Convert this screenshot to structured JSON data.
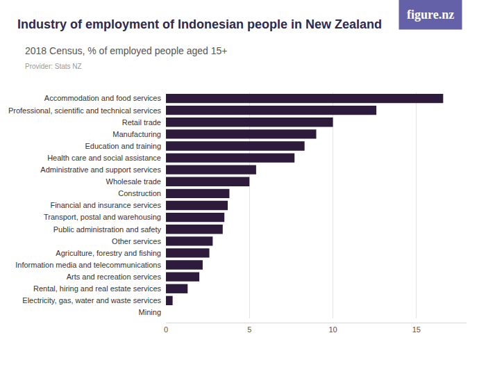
{
  "chart_data": {
    "type": "bar",
    "orientation": "horizontal",
    "title": "Industry of employment of Indonesian people in New Zealand",
    "subtitle": "2018 Census, % of employed people aged 15+",
    "provider": "Provider: Stats NZ",
    "logo": "figure.nz",
    "categories": [
      "Accommodation and food services",
      "Professional, scientific and technical services",
      "Retail trade",
      "Manufacturing",
      "Education and training",
      "Health care and social assistance",
      "Administrative and support services",
      "Wholesale trade",
      "Construction",
      "Financial and insurance services",
      "Transport, postal and warehousing",
      "Public administration and safety",
      "Other services",
      "Agriculture, forestry and fishing",
      "Information media and telecommunications",
      "Arts and recreation services",
      "Rental, hiring and real estate services",
      "Electricity, gas, water and waste services",
      "Mining"
    ],
    "values": [
      16.6,
      12.6,
      10.0,
      9.0,
      8.3,
      7.7,
      5.4,
      5.0,
      3.8,
      3.7,
      3.5,
      3.4,
      2.8,
      2.6,
      2.2,
      2.0,
      1.3,
      0.4,
      0
    ],
    "color": "#2e1a3b",
    "xlim": [
      0,
      18
    ],
    "xticks": [
      0,
      5,
      10,
      15
    ],
    "grid": true
  }
}
